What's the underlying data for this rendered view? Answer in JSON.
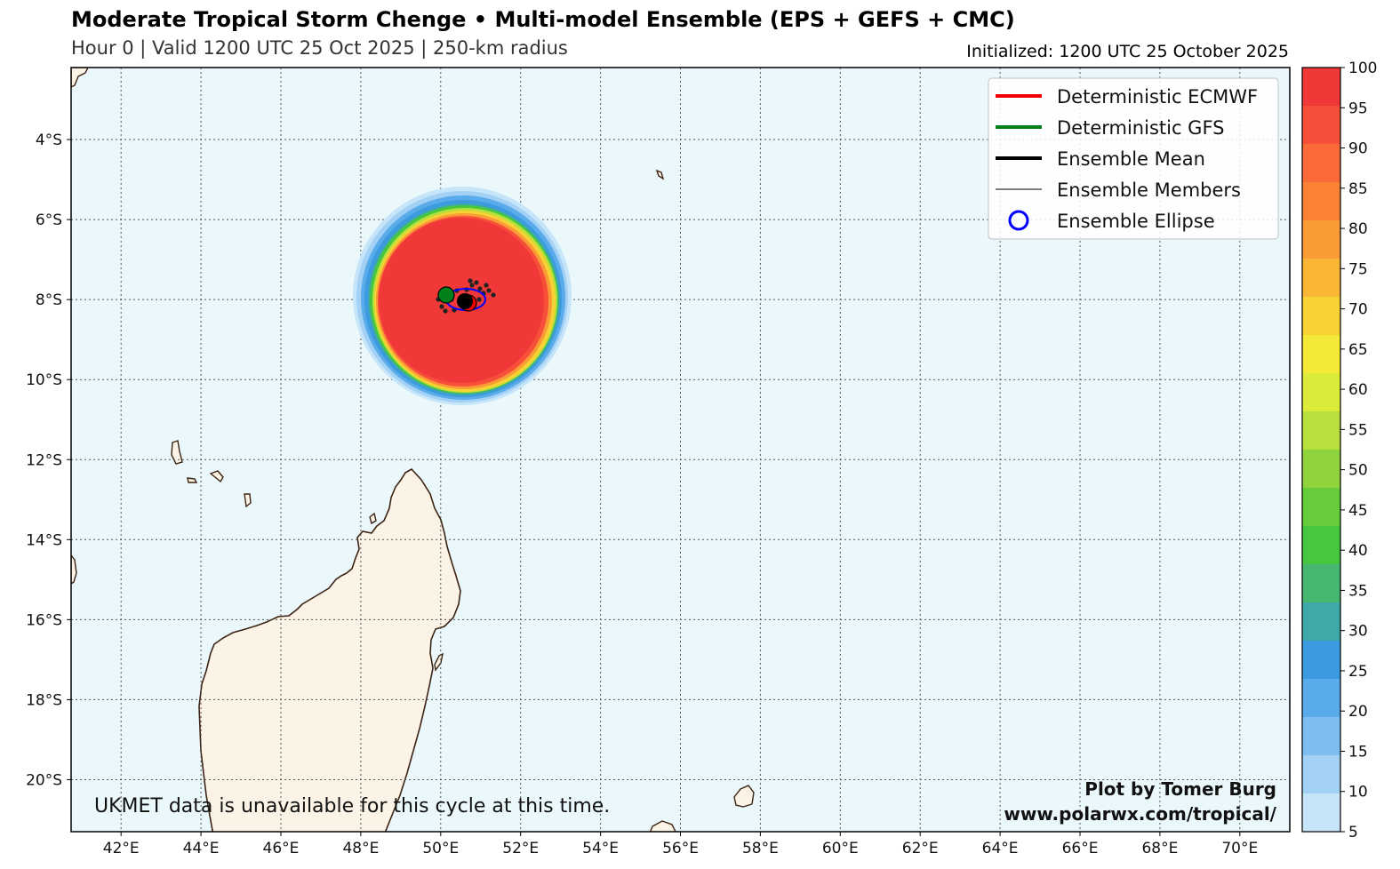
{
  "header": {
    "title": "Moderate Tropical Storm Chenge • Multi-model Ensemble (EPS + GEFS + CMC)",
    "subtitle": "Hour 0 | Valid 1200 UTC 25 Oct 2025 | 250-km radius",
    "initialized": "Initialized: 1200 UTC 25 October 2025"
  },
  "map": {
    "lon_range": [
      40.75,
      71.25
    ],
    "lat_range": [
      -2.2,
      -21.3
    ],
    "lon_ticks": [
      "42°E",
      "44°E",
      "46°E",
      "48°E",
      "50°E",
      "52°E",
      "54°E",
      "56°E",
      "58°E",
      "60°E",
      "62°E",
      "64°E",
      "66°E",
      "68°E",
      "70°E"
    ],
    "lat_ticks": [
      "4°S",
      "6°S",
      "8°S",
      "10°S",
      "12°S",
      "14°S",
      "16°S",
      "18°S",
      "20°S"
    ],
    "storm_center": {
      "lon": 50.6,
      "lat": -7.9
    },
    "colors": {
      "ocean": "#eaf8fc",
      "land": "#fbf3e6",
      "coast": "#3d2313",
      "ecmwf": "#ee0000",
      "gfs": "#00801a",
      "ellipse": "#0000ff"
    }
  },
  "legend": {
    "items": [
      {
        "label": "Deterministic ECMWF",
        "color": "#ee0000"
      },
      {
        "label": "Deterministic GFS",
        "color": "#00801a"
      },
      {
        "label": "Ensemble Mean",
        "color": "#000000"
      },
      {
        "label": "Ensemble Members",
        "color": "#000000"
      },
      {
        "label": "Ensemble Ellipse",
        "color": "#0000ff"
      }
    ]
  },
  "colorbar": {
    "ticks": [
      "100",
      "95",
      "90",
      "85",
      "80",
      "75",
      "70",
      "65",
      "60",
      "55",
      "50",
      "45",
      "40",
      "35",
      "30",
      "25",
      "20",
      "15",
      "10",
      "5"
    ],
    "colors": [
      "#f03838",
      "#f7503a",
      "#fa6a38",
      "#fb8235",
      "#fa9c35",
      "#f9b634",
      "#f6d234",
      "#f5e937",
      "#dcea3a",
      "#b7e03c",
      "#8fd43d",
      "#66cc3c",
      "#47c640",
      "#46b670",
      "#3fa8a8",
      "#3b9ae0",
      "#5aabe9",
      "#7ebdf0",
      "#a3d1f6",
      "#c6e5f9"
    ]
  },
  "annotations": {
    "ukmet": "UKMET data is unavailable for this cycle at this time.",
    "credit_line1": "Plot by Tomer Burg",
    "credit_line2": "www.polarwx.com/tropical/"
  }
}
